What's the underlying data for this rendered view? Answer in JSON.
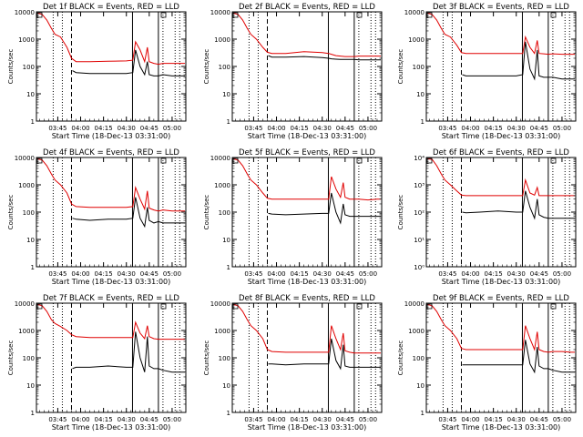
{
  "figure": {
    "colors": {
      "events": "#000000",
      "lld": "#e00000",
      "axis": "#000000"
    },
    "xticks": [
      "03:45",
      "04:00",
      "04:15",
      "04:30",
      "04:45",
      "05:00"
    ],
    "xtick_hours": [
      3.75,
      4.0,
      4.25,
      4.5,
      4.75,
      5.0
    ],
    "xlabel": "Start Time (18-Dec-13 03:31:00)",
    "ylabel": "Counts/sec",
    "xlim_hours": [
      3.5167,
      5.15
    ],
    "ylim": [
      1,
      10000
    ],
    "yscale": "log",
    "vlines": [
      {
        "hour": 3.7,
        "style": "dotted"
      },
      {
        "hour": 3.8,
        "style": "dotted"
      },
      {
        "hour": 3.9,
        "style": "dashed"
      },
      {
        "hour": 4.567,
        "style": "solid"
      },
      {
        "hour": 4.85,
        "style": "solid"
      },
      {
        "hour": 4.9,
        "style": "dotted"
      },
      {
        "hour": 5.033,
        "style": "dotted"
      },
      {
        "hour": 5.083,
        "style": "dotted"
      }
    ]
  },
  "chart_data": [
    {
      "type": "line",
      "title": "Det 1f BLACK = Events, RED = LLD",
      "ytick_labels": [
        "1",
        "10",
        "100",
        "1000",
        "10000"
      ],
      "ylim": [
        1,
        10000
      ],
      "yscale": "log",
      "series": [
        {
          "x": [
            3.53,
            3.58,
            3.63,
            3.68,
            3.72,
            3.78,
            3.85,
            3.9,
            3.95,
            4.1,
            4.3,
            4.5,
            4.57,
            4.6,
            4.65,
            4.7,
            4.73,
            4.75,
            4.8,
            4.85,
            4.9,
            5.0,
            5.1,
            5.14
          ],
          "y": [
            9000,
            8000,
            5000,
            2500,
            1500,
            1200,
            500,
            200,
            150,
            150,
            155,
            160,
            170,
            800,
            400,
            150,
            500,
            150,
            130,
            120,
            130,
            130,
            130,
            130
          ]
        },
        {
          "x": [
            3.91,
            3.95,
            4.1,
            4.3,
            4.5,
            4.57,
            4.6,
            4.65,
            4.7,
            4.73,
            4.75,
            4.8,
            4.85,
            4.9,
            5.0,
            5.1,
            5.14
          ],
          "y": [
            70,
            60,
            55,
            55,
            55,
            60,
            400,
            100,
            50,
            150,
            50,
            45,
            45,
            50,
            45,
            45,
            45
          ]
        }
      ]
    },
    {
      "type": "line",
      "title": "Det 2f BLACK = Events, RED = LLD",
      "ytick_labels": [
        "1",
        "10",
        "100",
        "1000",
        "10000"
      ],
      "ylim": [
        1,
        10000
      ],
      "yscale": "log",
      "series": [
        {
          "x": [
            3.53,
            3.58,
            3.63,
            3.68,
            3.72,
            3.78,
            3.85,
            3.9,
            3.95,
            4.1,
            4.3,
            4.5,
            4.57,
            4.6,
            4.65,
            4.7,
            4.75,
            4.8,
            4.85,
            4.9,
            5.0,
            5.1,
            5.14
          ],
          "y": [
            9000,
            8000,
            5000,
            2500,
            1500,
            1000,
            500,
            330,
            300,
            300,
            350,
            320,
            300,
            280,
            250,
            240,
            230,
            230,
            230,
            240,
            240,
            240,
            240
          ]
        },
        {
          "x": [
            3.91,
            3.95,
            4.1,
            4.3,
            4.5,
            4.57,
            4.6,
            4.65,
            4.7,
            4.75,
            4.8,
            4.85,
            4.9,
            5.0,
            5.1,
            5.14
          ],
          "y": [
            250,
            220,
            220,
            230,
            210,
            200,
            190,
            185,
            180,
            180,
            180,
            180,
            175,
            175,
            175,
            175
          ]
        }
      ]
    },
    {
      "type": "line",
      "title": "Det 3f BLACK = Events, RED = LLD",
      "ytick_labels": [
        "1",
        "10",
        "100",
        "1000",
        "10000"
      ],
      "ylim": [
        1,
        10000
      ],
      "yscale": "log",
      "series": [
        {
          "x": [
            3.53,
            3.58,
            3.63,
            3.68,
            3.72,
            3.78,
            3.85,
            3.9,
            3.95,
            4.1,
            4.3,
            4.5,
            4.57,
            4.6,
            4.65,
            4.7,
            4.73,
            4.75,
            4.8,
            4.85,
            4.9,
            5.0,
            5.1,
            5.14
          ],
          "y": [
            9000,
            8000,
            5000,
            2500,
            1500,
            1200,
            600,
            320,
            300,
            300,
            300,
            300,
            300,
            1200,
            500,
            300,
            900,
            300,
            290,
            280,
            290,
            280,
            280,
            280
          ]
        },
        {
          "x": [
            3.91,
            3.95,
            4.1,
            4.3,
            4.5,
            4.57,
            4.6,
            4.65,
            4.7,
            4.73,
            4.75,
            4.8,
            4.85,
            4.9,
            5.0,
            5.1,
            5.14
          ],
          "y": [
            50,
            45,
            45,
            45,
            45,
            50,
            800,
            80,
            35,
            400,
            45,
            40,
            40,
            40,
            35,
            35,
            35
          ]
        }
      ]
    },
    {
      "type": "line",
      "title": "Det 4f BLACK = Events, RED = LLD",
      "ytick_labels": [
        "1",
        "10",
        "100",
        "1000",
        "10000"
      ],
      "ylim": [
        1,
        10000
      ],
      "yscale": "log",
      "series": [
        {
          "x": [
            3.53,
            3.58,
            3.63,
            3.68,
            3.72,
            3.78,
            3.85,
            3.9,
            3.95,
            4.1,
            4.3,
            4.5,
            4.57,
            4.6,
            4.65,
            4.7,
            4.73,
            4.75,
            4.8,
            4.85,
            4.9,
            5.0,
            5.1,
            5.14
          ],
          "y": [
            9000,
            8000,
            5000,
            2500,
            1500,
            1000,
            500,
            200,
            160,
            150,
            150,
            150,
            160,
            800,
            300,
            130,
            600,
            140,
            120,
            110,
            120,
            110,
            110,
            110
          ]
        },
        {
          "x": [
            3.91,
            3.95,
            4.1,
            4.3,
            4.5,
            4.57,
            4.6,
            4.65,
            4.7,
            4.73,
            4.75,
            4.8,
            4.85,
            4.9,
            5.0,
            5.1,
            5.14
          ],
          "y": [
            60,
            55,
            50,
            55,
            55,
            60,
            350,
            60,
            30,
            150,
            50,
            40,
            45,
            40,
            40,
            40,
            40
          ]
        }
      ]
    },
    {
      "type": "line",
      "title": "Det 5f BLACK = Events, RED = LLD",
      "ytick_labels": [
        "1",
        "10",
        "100",
        "1000",
        "10000"
      ],
      "ylim": [
        1,
        10000
      ],
      "yscale": "log",
      "series": [
        {
          "x": [
            3.53,
            3.58,
            3.63,
            3.68,
            3.72,
            3.78,
            3.85,
            3.9,
            3.95,
            4.1,
            4.3,
            4.5,
            4.57,
            4.6,
            4.65,
            4.7,
            4.73,
            4.75,
            4.8,
            4.85,
            4.9,
            5.0,
            5.1,
            5.14
          ],
          "y": [
            9000,
            8000,
            5000,
            2500,
            1500,
            1000,
            500,
            320,
            300,
            300,
            300,
            300,
            300,
            2000,
            700,
            350,
            1200,
            350,
            300,
            300,
            300,
            280,
            300,
            300
          ]
        },
        {
          "x": [
            3.91,
            3.95,
            4.1,
            4.3,
            4.5,
            4.57,
            4.6,
            4.65,
            4.7,
            4.73,
            4.75,
            4.8,
            4.85,
            4.9,
            5.0,
            5.1,
            5.14
          ],
          "y": [
            90,
            85,
            80,
            85,
            90,
            90,
            500,
            100,
            40,
            200,
            80,
            70,
            70,
            70,
            70,
            70,
            70
          ]
        }
      ]
    },
    {
      "type": "line",
      "title": "Det 6f BLACK = Events, RED = LLD",
      "ytick_labels": [
        "10⁰",
        "10¹",
        "10²",
        "10³",
        "10⁴"
      ],
      "ylim": [
        1,
        10000
      ],
      "yscale": "log",
      "series": [
        {
          "x": [
            3.53,
            3.58,
            3.63,
            3.68,
            3.72,
            3.78,
            3.85,
            3.9,
            3.95,
            4.1,
            4.3,
            4.5,
            4.57,
            4.6,
            4.65,
            4.7,
            4.73,
            4.75,
            4.8,
            4.85,
            4.9,
            5.0,
            5.1,
            5.14
          ],
          "y": [
            9000,
            8500,
            5000,
            2500,
            1500,
            1000,
            600,
            420,
            400,
            400,
            400,
            400,
            400,
            1500,
            500,
            420,
            800,
            400,
            400,
            400,
            400,
            400,
            400,
            400
          ]
        },
        {
          "x": [
            3.91,
            3.95,
            4.1,
            4.3,
            4.5,
            4.57,
            4.6,
            4.65,
            4.7,
            4.73,
            4.75,
            4.8,
            4.85,
            4.9,
            5.0,
            5.1,
            5.14
          ],
          "y": [
            100,
            95,
            100,
            110,
            100,
            100,
            600,
            150,
            60,
            300,
            80,
            65,
            60,
            60,
            60,
            60,
            60
          ]
        }
      ]
    },
    {
      "type": "line",
      "title": "Det 7f BLACK = Events, RED = LLD",
      "ytick_labels": [
        "1",
        "10",
        "100",
        "1000",
        "10000"
      ],
      "ylim": [
        1,
        10000
      ],
      "yscale": "log",
      "series": [
        {
          "x": [
            3.53,
            3.58,
            3.63,
            3.68,
            3.72,
            3.78,
            3.85,
            3.9,
            3.95,
            4.1,
            4.3,
            4.5,
            4.57,
            4.6,
            4.65,
            4.7,
            4.73,
            4.75,
            4.8,
            4.85,
            4.9,
            5.0,
            5.1,
            5.14
          ],
          "y": [
            9000,
            8000,
            5000,
            2500,
            1800,
            1400,
            1000,
            700,
            600,
            550,
            550,
            550,
            550,
            2000,
            800,
            500,
            1500,
            600,
            500,
            480,
            480,
            480,
            480,
            480
          ]
        },
        {
          "x": [
            3.91,
            3.95,
            4.1,
            4.3,
            4.5,
            4.57,
            4.6,
            4.65,
            4.7,
            4.73,
            4.75,
            4.8,
            4.85,
            4.9,
            5.0,
            5.1,
            5.14
          ],
          "y": [
            40,
            45,
            45,
            50,
            45,
            45,
            900,
            100,
            30,
            600,
            50,
            40,
            40,
            35,
            30,
            30,
            30
          ]
        }
      ]
    },
    {
      "type": "line",
      "title": "Det 8f BLACK = Events, RED = LLD",
      "ytick_labels": [
        "1",
        "10",
        "100",
        "1000",
        "10000"
      ],
      "ylim": [
        1,
        10000
      ],
      "yscale": "log",
      "series": [
        {
          "x": [
            3.53,
            3.58,
            3.63,
            3.68,
            3.72,
            3.78,
            3.85,
            3.9,
            3.95,
            4.1,
            4.3,
            4.5,
            4.57,
            4.6,
            4.65,
            4.7,
            4.73,
            4.75,
            4.8,
            4.85,
            4.9,
            5.0,
            5.1,
            5.14
          ],
          "y": [
            9000,
            8000,
            5000,
            2500,
            1500,
            1000,
            500,
            200,
            170,
            160,
            160,
            160,
            160,
            1500,
            500,
            200,
            800,
            180,
            160,
            150,
            150,
            150,
            150,
            150
          ]
        },
        {
          "x": [
            3.91,
            3.95,
            4.1,
            4.3,
            4.5,
            4.57,
            4.6,
            4.65,
            4.7,
            4.73,
            4.75,
            4.8,
            4.85,
            4.9,
            5.0,
            5.1,
            5.14
          ],
          "y": [
            60,
            60,
            55,
            60,
            60,
            60,
            500,
            80,
            40,
            300,
            50,
            45,
            45,
            45,
            45,
            45,
            45
          ]
        }
      ]
    },
    {
      "type": "line",
      "title": "Det 9f BLACK = Events, RED = LLD",
      "ytick_labels": [
        "1",
        "10",
        "100",
        "1000",
        "10000"
      ],
      "ylim": [
        1,
        10000
      ],
      "yscale": "log",
      "series": [
        {
          "x": [
            3.53,
            3.58,
            3.63,
            3.68,
            3.72,
            3.78,
            3.85,
            3.9,
            3.95,
            4.1,
            4.3,
            4.5,
            4.57,
            4.6,
            4.65,
            4.7,
            4.73,
            4.75,
            4.8,
            4.85,
            4.9,
            5.0,
            5.1,
            5.14
          ],
          "y": [
            9000,
            8000,
            5000,
            2500,
            1500,
            1000,
            500,
            220,
            200,
            200,
            200,
            200,
            200,
            1500,
            500,
            200,
            900,
            200,
            170,
            160,
            170,
            170,
            160,
            160
          ]
        },
        {
          "x": [
            3.91,
            3.95,
            4.1,
            4.3,
            4.5,
            4.57,
            4.6,
            4.65,
            4.7,
            4.73,
            4.75,
            4.8,
            4.85,
            4.9,
            5.0,
            5.1,
            5.14
          ],
          "y": [
            55,
            55,
            55,
            55,
            55,
            55,
            450,
            60,
            30,
            250,
            50,
            40,
            40,
            35,
            30,
            30,
            30
          ]
        }
      ]
    }
  ]
}
